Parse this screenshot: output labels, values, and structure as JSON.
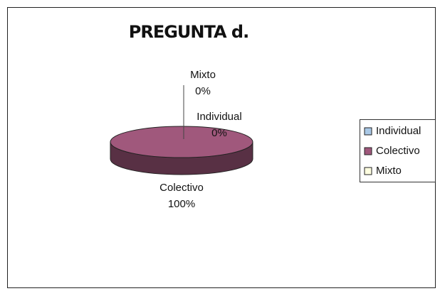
{
  "chart_data": {
    "type": "pie",
    "title": "PREGUNTA d.",
    "categories": [
      "Individual",
      "Colectivo",
      "Mixto"
    ],
    "values": [
      0,
      100,
      0
    ],
    "value_labels": [
      "0%",
      "100%",
      "0%"
    ],
    "colors": [
      "#a9c8e6",
      "#a0587c",
      "#ffffe0"
    ],
    "legend": "right"
  }
}
